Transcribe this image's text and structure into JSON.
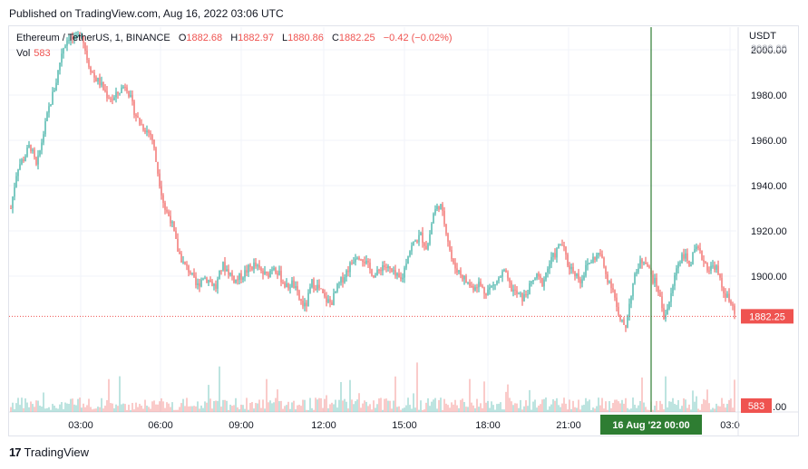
{
  "published": "Published on TradingView.com, Aug 16, 2022 03:06 UTC",
  "legend": {
    "symbol": "Ethereum / TetherUS, 1, BINANCE",
    "o_key": "O",
    "o_val": "1882.68",
    "h_key": "H",
    "h_val": "1882.97",
    "l_key": "L",
    "l_val": "1880.86",
    "c_key": "C",
    "c_val": "1882.25",
    "change": "−0.42 (−0.02%)",
    "vol_key": "Vol",
    "vol_val": "583"
  },
  "currency": "USDT",
  "footer": {
    "brand": "TradingView"
  },
  "colors": {
    "up": "#26a69a",
    "down": "#ef5350",
    "crosshair": "#2e7d32",
    "grid": "#f0f3fa"
  },
  "chart_data": {
    "type": "candlestick",
    "y_ticks": [
      "2000.00",
      "1980.00",
      "1960.00",
      "1940.00",
      "1920.00",
      "1900.00"
    ],
    "ylim": [
      1875,
      2020
    ],
    "x_ticks": [
      "03:00",
      "06:00",
      "09:00",
      "12:00",
      "15:00",
      "18:00",
      "21:00",
      "03:0"
    ],
    "crosshair_label": "16 Aug '22   00:00",
    "last_price_label": "1882.25",
    "last_price": 1882.25,
    "volume_label": "583",
    "volume_axis_tail": ".00",
    "top_axis_tail": "2020.00",
    "path": [
      [
        0,
        1930
      ],
      [
        1,
        1948
      ],
      [
        2,
        1952
      ],
      [
        3,
        1958
      ],
      [
        4,
        1948
      ],
      [
        5,
        1962
      ],
      [
        6,
        1975
      ],
      [
        7,
        1985
      ],
      [
        8,
        2000
      ],
      [
        9,
        2006
      ],
      [
        10,
        2004
      ],
      [
        11,
        2008
      ],
      [
        12,
        1995
      ],
      [
        13,
        1988
      ],
      [
        14,
        1985
      ],
      [
        15,
        1980
      ],
      [
        16,
        1978
      ],
      [
        17,
        1982
      ],
      [
        18,
        1985
      ],
      [
        19,
        1975
      ],
      [
        20,
        1968
      ],
      [
        21,
        1965
      ],
      [
        22,
        1962
      ],
      [
        23,
        1945
      ],
      [
        24,
        1930
      ],
      [
        25,
        1925
      ],
      [
        26,
        1912
      ],
      [
        27,
        1905
      ],
      [
        28,
        1902
      ],
      [
        29,
        1895
      ],
      [
        30,
        1900
      ],
      [
        31,
        1898
      ],
      [
        32,
        1895
      ],
      [
        33,
        1905
      ],
      [
        34,
        1902
      ],
      [
        35,
        1898
      ],
      [
        36,
        1900
      ],
      [
        37,
        1903
      ],
      [
        38,
        1905
      ],
      [
        39,
        1902
      ],
      [
        40,
        1900
      ],
      [
        41,
        1905
      ],
      [
        42,
        1900
      ],
      [
        43,
        1895
      ],
      [
        44,
        1897
      ],
      [
        45,
        1890
      ],
      [
        46,
        1886
      ],
      [
        47,
        1897
      ],
      [
        48,
        1895
      ],
      [
        49,
        1890
      ],
      [
        50,
        1888
      ],
      [
        51,
        1895
      ],
      [
        52,
        1900
      ],
      [
        53,
        1905
      ],
      [
        54,
        1910
      ],
      [
        55,
        1908
      ],
      [
        56,
        1903
      ],
      [
        57,
        1900
      ],
      [
        58,
        1905
      ],
      [
        59,
        1903
      ],
      [
        60,
        1900
      ],
      [
        61,
        1898
      ],
      [
        62,
        1910
      ],
      [
        63,
        1915
      ],
      [
        64,
        1918
      ],
      [
        65,
        1912
      ],
      [
        66,
        1928
      ],
      [
        67,
        1932
      ],
      [
        68,
        1920
      ],
      [
        69,
        1905
      ],
      [
        70,
        1902
      ],
      [
        71,
        1898
      ],
      [
        72,
        1895
      ],
      [
        73,
        1897
      ],
      [
        74,
        1893
      ],
      [
        75,
        1895
      ],
      [
        76,
        1898
      ],
      [
        77,
        1902
      ],
      [
        78,
        1895
      ],
      [
        79,
        1892
      ],
      [
        80,
        1890
      ],
      [
        81,
        1895
      ],
      [
        82,
        1900
      ],
      [
        83,
        1897
      ],
      [
        84,
        1905
      ],
      [
        85,
        1910
      ],
      [
        86,
        1915
      ],
      [
        87,
        1905
      ],
      [
        88,
        1902
      ],
      [
        89,
        1898
      ],
      [
        90,
        1905
      ],
      [
        91,
        1908
      ],
      [
        92,
        1910
      ],
      [
        93,
        1900
      ],
      [
        94,
        1895
      ],
      [
        95,
        1880
      ],
      [
        96,
        1878
      ],
      [
        97,
        1895
      ],
      [
        98,
        1905
      ],
      [
        99,
        1908
      ],
      [
        100,
        1900
      ],
      [
        101,
        1895
      ],
      [
        102,
        1882
      ],
      [
        103,
        1890
      ],
      [
        104,
        1905
      ],
      [
        105,
        1910
      ],
      [
        106,
        1905
      ],
      [
        107,
        1912
      ],
      [
        108,
        1908
      ],
      [
        109,
        1903
      ],
      [
        110,
        1905
      ],
      [
        111,
        1895
      ],
      [
        112,
        1890
      ],
      [
        113,
        1883
      ]
    ]
  }
}
